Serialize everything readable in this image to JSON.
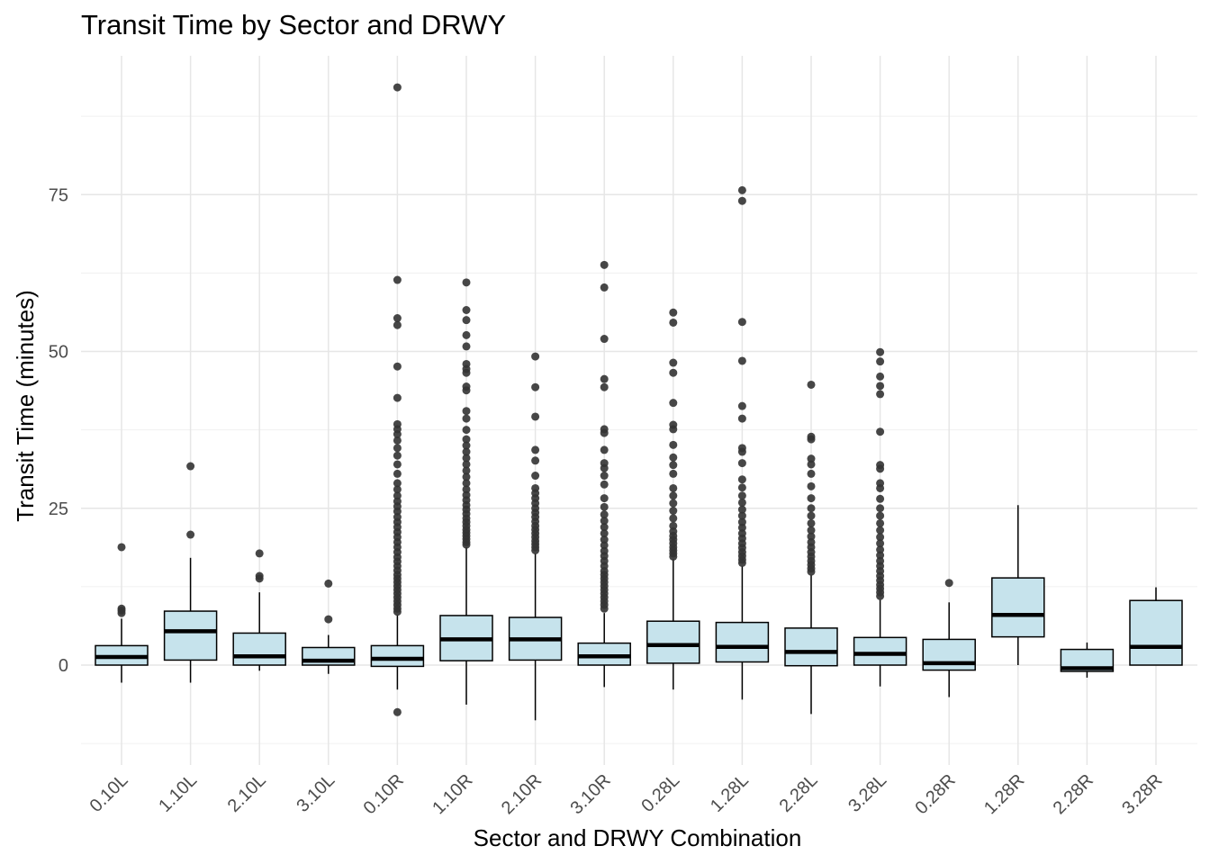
{
  "chart_data": {
    "type": "box",
    "title": "Transit Time by Sector and DRWY",
    "xlabel": "Sector and DRWY Combination",
    "ylabel": "Transit Time (minutes)",
    "ylim": [
      -12.5,
      97
    ],
    "yticks": [
      0,
      25,
      50,
      75
    ],
    "ytick_labels": [
      "0",
      "25",
      "50",
      "75"
    ],
    "grid": true,
    "box_fill": "#c6e3ec",
    "outlier_color": "#333333",
    "categories": [
      "0.10L",
      "1.10L",
      "2.10L",
      "3.10L",
      "0.10R",
      "1.10R",
      "2.10R",
      "3.10R",
      "0.28L",
      "1.28L",
      "2.28L",
      "3.28L",
      "0.28R",
      "1.28R",
      "2.28R",
      "3.28R"
    ],
    "boxes": [
      {
        "whisker_low": -2.8,
        "q1": 0.0,
        "median": 1.3,
        "q3": 3.1,
        "whisker_high": 7.4,
        "outliers": [
          8.3,
          8.7,
          9.0,
          18.8
        ]
      },
      {
        "whisker_low": -2.8,
        "q1": 0.8,
        "median": 5.4,
        "q3": 8.6,
        "whisker_high": 17.1,
        "outliers": [
          20.8,
          31.7
        ]
      },
      {
        "whisker_low": -0.9,
        "q1": 0.0,
        "median": 1.4,
        "q3": 5.1,
        "whisker_high": 11.6,
        "outliers": [
          13.8,
          14.2,
          17.8
        ]
      },
      {
        "whisker_low": -1.4,
        "q1": 0.0,
        "median": 0.7,
        "q3": 2.8,
        "whisker_high": 4.8,
        "outliers": [
          7.3,
          13.0
        ]
      },
      {
        "whisker_low": -3.9,
        "q1": -0.2,
        "median": 1.0,
        "q3": 3.1,
        "whisker_high": 8.0,
        "outliers": [
          -7.5,
          8.5,
          9.0,
          9.6,
          10.2,
          10.8,
          11.4,
          12.0,
          12.6,
          13.2,
          13.8,
          14.4,
          15.1,
          15.8,
          16.5,
          17.2,
          18.0,
          18.8,
          19.6,
          20.4,
          21.2,
          22.0,
          22.8,
          23.6,
          24.5,
          25.3,
          26.1,
          27.0,
          28.0,
          29.0,
          30.5,
          32.0,
          33.4,
          34.6,
          35.8,
          36.8,
          37.6,
          38.4,
          42.6,
          47.6,
          54.2,
          55.3,
          61.4,
          92.1
        ]
      },
      {
        "whisker_low": -6.3,
        "q1": 0.7,
        "median": 4.1,
        "q3": 7.9,
        "whisker_high": 18.8,
        "outliers": [
          19.2,
          19.6,
          20.1,
          20.6,
          21.1,
          21.6,
          22.2,
          22.8,
          23.4,
          24.1,
          24.8,
          25.5,
          26.3,
          27.1,
          28.0,
          29.0,
          30.0,
          31.0,
          32.0,
          33.0,
          34.0,
          35.0,
          36.0,
          37.5,
          39.3,
          40.5,
          43.8,
          44.4,
          46.6,
          47.2,
          48.0,
          50.8,
          52.6,
          55.0,
          56.6,
          61.0
        ]
      },
      {
        "whisker_low": -8.8,
        "q1": 0.8,
        "median": 4.1,
        "q3": 7.6,
        "whisker_high": 17.8,
        "outliers": [
          18.3,
          18.8,
          19.3,
          19.8,
          20.4,
          21.0,
          21.6,
          22.2,
          22.9,
          23.6,
          24.3,
          25.0,
          25.8,
          26.6,
          27.4,
          28.2,
          30.2,
          32.6,
          34.3,
          39.6,
          44.3,
          49.2
        ]
      },
      {
        "whisker_low": -3.5,
        "q1": 0.0,
        "median": 1.4,
        "q3": 3.5,
        "whisker_high": 8.3,
        "outliers": [
          9.0,
          9.6,
          10.2,
          10.8,
          11.4,
          12.0,
          12.6,
          13.2,
          13.8,
          14.4,
          15.0,
          15.8,
          16.6,
          17.4,
          18.2,
          19.1,
          20.0,
          21.0,
          22.0,
          23.0,
          24.0,
          25.2,
          26.6,
          28.8,
          30.2,
          31.4,
          32.2,
          34.3,
          37.0,
          37.6,
          44.3,
          45.6,
          52.0,
          60.2,
          63.8
        ]
      },
      {
        "whisker_low": -3.9,
        "q1": 0.3,
        "median": 3.2,
        "q3": 7.0,
        "whisker_high": 16.9,
        "outliers": [
          17.3,
          17.8,
          18.3,
          18.8,
          19.4,
          20.0,
          20.6,
          21.3,
          22.2,
          23.4,
          24.6,
          25.8,
          27.0,
          28.2,
          30.5,
          31.9,
          33.1,
          35.1,
          37.6,
          38.3,
          41.8,
          46.6,
          48.2,
          54.6,
          56.2
        ]
      },
      {
        "whisker_low": -5.5,
        "q1": 0.5,
        "median": 2.9,
        "q3": 6.8,
        "whisker_high": 15.8,
        "outliers": [
          16.3,
          16.8,
          17.4,
          18.0,
          18.7,
          19.4,
          20.2,
          21.0,
          21.9,
          22.8,
          23.8,
          24.8,
          25.9,
          27.0,
          28.3,
          29.6,
          32.2,
          34.0,
          34.6,
          39.3,
          41.3,
          48.5,
          54.7,
          74.0,
          75.7
        ]
      },
      {
        "whisker_low": -7.8,
        "q1": -0.1,
        "median": 2.1,
        "q3": 5.9,
        "whisker_high": 14.4,
        "outliers": [
          14.9,
          15.4,
          16.0,
          16.6,
          17.3,
          18.0,
          18.8,
          19.6,
          20.5,
          21.5,
          22.6,
          23.8,
          25.0,
          26.6,
          28.5,
          30.5,
          32.0,
          32.9,
          36.0,
          36.4,
          44.7
        ]
      },
      {
        "whisker_low": -3.4,
        "q1": 0.0,
        "median": 1.8,
        "q3": 4.4,
        "whisker_high": 10.4,
        "outliers": [
          11.0,
          11.6,
          12.2,
          12.8,
          13.5,
          14.2,
          15.0,
          15.8,
          16.6,
          17.5,
          18.4,
          19.4,
          20.4,
          21.5,
          22.6,
          23.8,
          25.0,
          26.5,
          28.2,
          29.0,
          31.3,
          31.9,
          37.2,
          43.2,
          44.5,
          46.0,
          48.4,
          49.9
        ]
      },
      {
        "whisker_low": -5.1,
        "q1": -0.8,
        "median": 0.3,
        "q3": 4.1,
        "whisker_high": 10.0,
        "outliers": [
          13.1
        ]
      },
      {
        "whisker_low": 0.0,
        "q1": 4.5,
        "median": 8.0,
        "q3": 13.9,
        "whisker_high": 25.5,
        "outliers": []
      },
      {
        "whisker_low": -2.0,
        "q1": -1.0,
        "median": -0.5,
        "q3": 2.5,
        "whisker_high": 3.6,
        "outliers": []
      },
      {
        "whisker_low": 0.0,
        "q1": 0.0,
        "median": 2.9,
        "q3": 10.3,
        "whisker_high": 12.4,
        "outliers": []
      }
    ]
  }
}
